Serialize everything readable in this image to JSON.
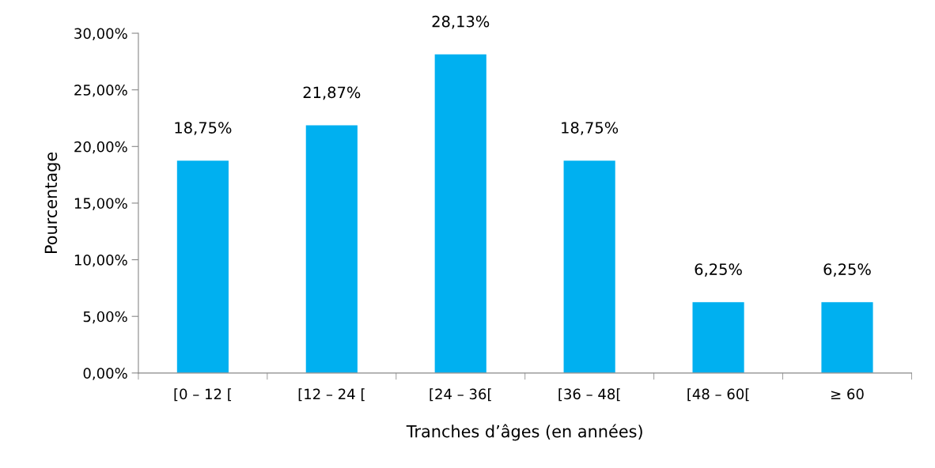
{
  "chart_data": {
    "type": "bar",
    "categories": [
      "[0 – 12 [",
      "[12 – 24 [",
      "[24 – 36[",
      "[36 – 48[",
      "[48 – 60[",
      "≥ 60"
    ],
    "values": [
      18.75,
      21.87,
      28.13,
      18.75,
      6.25,
      6.25
    ],
    "value_labels": [
      "18,75%",
      "21,87%",
      "28,13%",
      "18,75%",
      "6,25%",
      "6,25%"
    ],
    "color": "#00b0f0",
    "xlabel": "Tranches d’âges (en années)",
    "ylabel": "Pourcentage",
    "ylim": [
      0,
      30
    ],
    "yticks": [
      {
        "value": 0,
        "label": "0,00%"
      },
      {
        "value": 5,
        "label": "5,00%"
      },
      {
        "value": 10,
        "label": "10,00%"
      },
      {
        "value": 15,
        "label": "15,00%"
      },
      {
        "value": 20,
        "label": "20,00%"
      },
      {
        "value": 25,
        "label": "25,00%"
      },
      {
        "value": 30,
        "label": "30,00%"
      }
    ],
    "grid": false,
    "legend": false
  }
}
